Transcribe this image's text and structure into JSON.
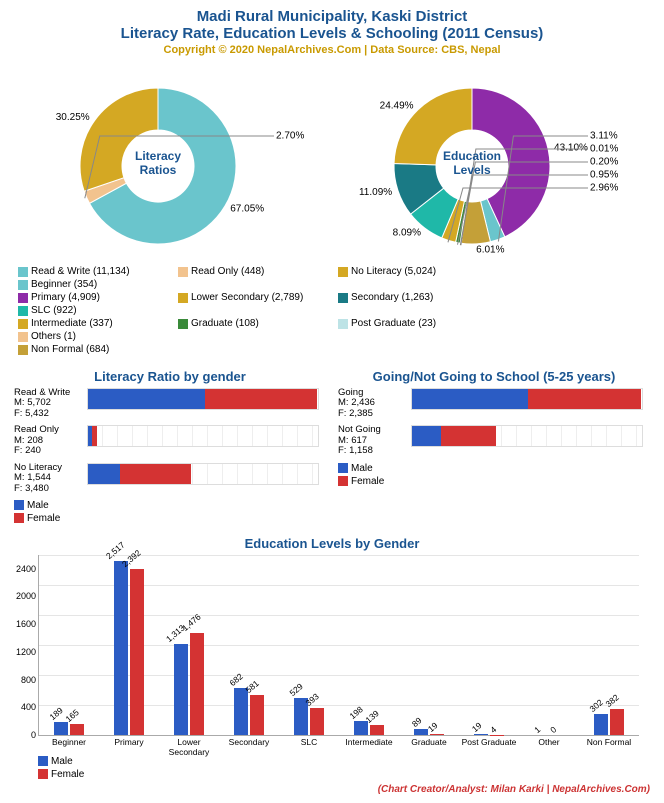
{
  "header": {
    "line1": "Madi Rural Municipality, Kaski District",
    "line2": "Literacy Rate, Education Levels & Schooling (2011 Census)",
    "sub": "Copyright © 2020 NepalArchives.Com | Data Source: CBS, Nepal"
  },
  "colors": {
    "male": "#2b5cc4",
    "female": "#d43333",
    "title": "#1a5490"
  },
  "donut1": {
    "center_label": "Literacy\nRatios",
    "slices": [
      {
        "label": "Read & Write",
        "count": 11134,
        "pct": 67.05,
        "color": "#6ac5cc"
      },
      {
        "label": "Read Only",
        "count": 448,
        "pct": 2.7,
        "color": "#f2c38e"
      },
      {
        "label": "No Literacy",
        "count": 5024,
        "pct": 30.25,
        "color": "#d4a823"
      }
    ]
  },
  "donut2": {
    "center_label": "Education\nLevels",
    "slices": [
      {
        "label": "Primary",
        "count": 4909,
        "pct": 43.1,
        "color": "#8e2ba8"
      },
      {
        "label": "Beginner",
        "count": 354,
        "pct": 3.11,
        "color": "#6ac5cc"
      },
      {
        "label": "Non Formal",
        "count": 684,
        "pct": 6.01,
        "color": "#c4a038"
      },
      {
        "label": "Others",
        "count": 1,
        "pct": 0.01,
        "color": "#f2c38e"
      },
      {
        "label": "Post Graduate",
        "count": 23,
        "pct": 0.2,
        "color": "#bde3e6"
      },
      {
        "label": "Graduate",
        "count": 108,
        "pct": 0.95,
        "color": "#3a8a3a"
      },
      {
        "label": "Intermediate",
        "count": 337,
        "pct": 2.96,
        "color": "#d4a823"
      },
      {
        "label": "SLC",
        "count": 922,
        "pct": 8.09,
        "color": "#1fb8a8"
      },
      {
        "label": "Secondary",
        "count": 1263,
        "pct": 11.09,
        "color": "#1a7a85"
      },
      {
        "label": "Lower Secondary",
        "count": 2789,
        "pct": 24.49,
        "color": "#d4a823"
      }
    ]
  },
  "shared_legend": [
    {
      "label": "Read & Write (11,134)",
      "color": "#6ac5cc"
    },
    {
      "label": "Read Only (448)",
      "color": "#f2c38e"
    },
    {
      "label": "No Literacy (5,024)",
      "color": "#d4a823"
    },
    {
      "label": "Beginner (354)",
      "color": "#6ac5cc"
    },
    {
      "label": "Primary (4,909)",
      "color": "#8e2ba8"
    },
    {
      "label": "Lower Secondary (2,789)",
      "color": "#d4a823"
    },
    {
      "label": "Secondary (1,263)",
      "color": "#1a7a85"
    },
    {
      "label": "SLC (922)",
      "color": "#1fb8a8"
    },
    {
      "label": "Intermediate (337)",
      "color": "#d4a823"
    },
    {
      "label": "Graduate (108)",
      "color": "#3a8a3a"
    },
    {
      "label": "Post Graduate (23)",
      "color": "#bde3e6"
    },
    {
      "label": "Others (1)",
      "color": "#f2c38e"
    },
    {
      "label": "Non Formal (684)",
      "color": "#c4a038"
    }
  ],
  "hbar1": {
    "title": "Literacy Ratio by gender",
    "max": 11200,
    "track_w": 230,
    "rows": [
      {
        "name": "Read & Write",
        "m": 5702,
        "f": 5432
      },
      {
        "name": "Read Only",
        "m": 208,
        "f": 240
      },
      {
        "name": "No Literacy",
        "m": 1544,
        "f": 3480
      }
    ],
    "legend": [
      "Male",
      "Female"
    ]
  },
  "hbar2": {
    "title": "Going/Not Going to School (5-25 years)",
    "max": 4850,
    "track_w": 230,
    "rows": [
      {
        "name": "Going",
        "m": 2436,
        "f": 2385
      },
      {
        "name": "Not Going",
        "m": 617,
        "f": 1158
      }
    ],
    "legend": [
      "Male",
      "Female"
    ]
  },
  "vbar": {
    "title": "Education Levels by Gender",
    "ymax": 2600,
    "yticks": [
      0,
      400,
      800,
      1200,
      1600,
      2000,
      2400
    ],
    "cats": [
      {
        "name": "Beginner",
        "m": 189,
        "f": 165
      },
      {
        "name": "Primary",
        "m": 2517,
        "f": 2392
      },
      {
        "name": "Lower Secondary",
        "m": 1313,
        "f": 1476
      },
      {
        "name": "Secondary",
        "m": 682,
        "f": 581
      },
      {
        "name": "SLC",
        "m": 529,
        "f": 393
      },
      {
        "name": "Intermediate",
        "m": 198,
        "f": 139
      },
      {
        "name": "Graduate",
        "m": 89,
        "f": 19
      },
      {
        "name": "Post Graduate",
        "m": 19,
        "f": 4
      },
      {
        "name": "Other",
        "m": 1,
        "f": 0
      },
      {
        "name": "Non Formal",
        "m": 302,
        "f": 382
      }
    ],
    "legend": [
      "Male",
      "Female"
    ]
  },
  "credit": "(Chart Creator/Analyst: Milan Karki | NepalArchives.Com)"
}
